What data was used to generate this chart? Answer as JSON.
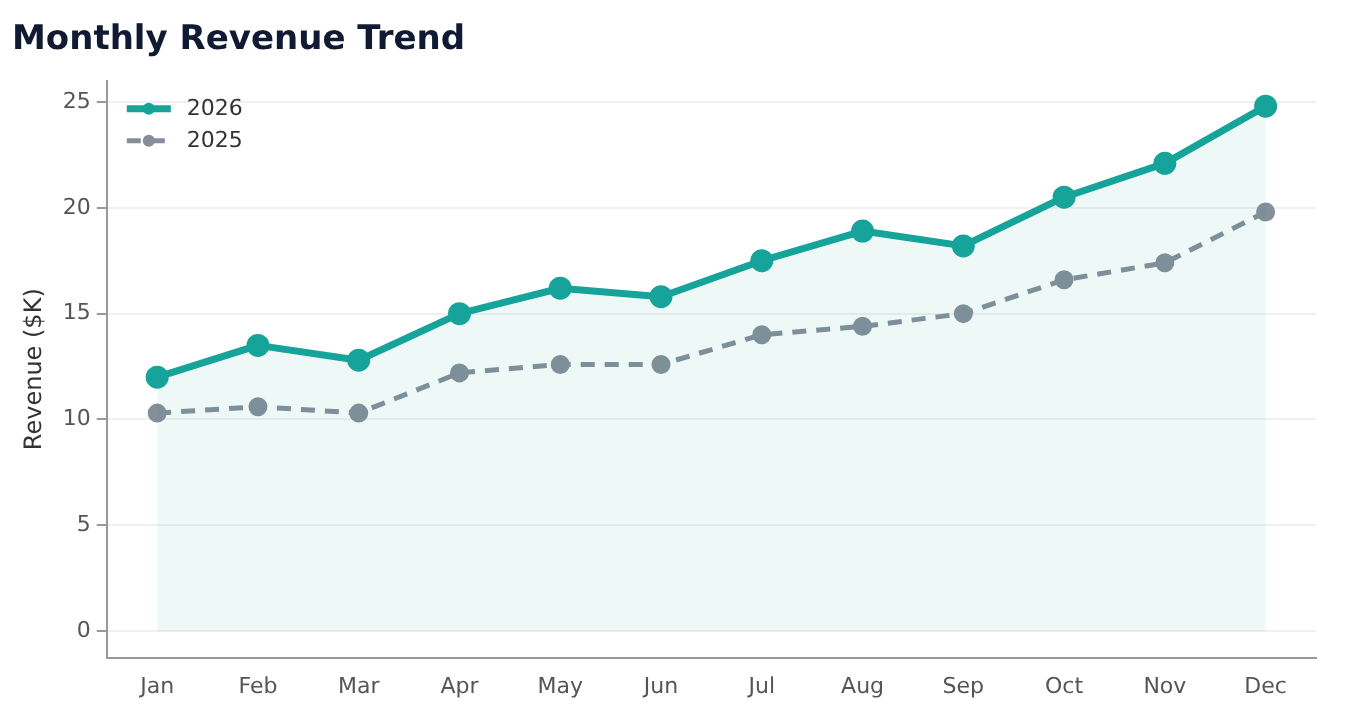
{
  "chart_data": {
    "type": "line",
    "title": "Monthly Revenue Trend",
    "ylabel": "Revenue ($K)",
    "categories": [
      "Jan",
      "Feb",
      "Mar",
      "Apr",
      "May",
      "Jun",
      "Jul",
      "Aug",
      "Sep",
      "Oct",
      "Nov",
      "Dec"
    ],
    "series": [
      {
        "name": "2026",
        "type": "area",
        "color": "#15a39a",
        "line_style": "solid",
        "values": [
          12.0,
          13.5,
          12.8,
          15.0,
          16.2,
          15.8,
          17.5,
          18.9,
          18.2,
          20.5,
          22.1,
          24.8
        ]
      },
      {
        "name": "2025",
        "color": "#868e99",
        "line_style": "dashed",
        "values": [
          10.3,
          10.6,
          10.3,
          12.2,
          12.6,
          12.6,
          14.0,
          14.4,
          15.0,
          16.6,
          17.4,
          19.8
        ]
      }
    ],
    "ylim": [
      -1.25,
      26
    ],
    "yticks": [
      0,
      5,
      10,
      15,
      20,
      25
    ],
    "grid": "y",
    "legend": "top left",
    "marker": "circle"
  }
}
